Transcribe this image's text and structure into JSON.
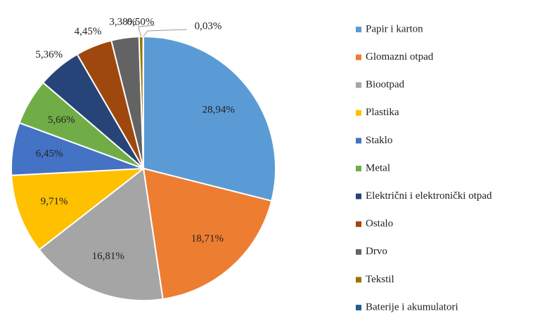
{
  "chart_data": {
    "type": "pie",
    "categories": [
      "Papir i karton",
      "Glomazni otpad",
      "Biootpad",
      "Plastika",
      "Staklo",
      "Metal",
      "Električni i elektronički otpad",
      "Ostalo",
      "Drvo",
      "Tekstil",
      "Baterije i akumulatori"
    ],
    "values": [
      28.94,
      18.71,
      16.81,
      9.71,
      6.45,
      5.66,
      5.36,
      4.45,
      3.38,
      0.5,
      0.03
    ],
    "value_labels": [
      "28,94%",
      "18,71%",
      "16,81%",
      "9,71%",
      "6,45%",
      "5,66%",
      "5,36%",
      "4,45%",
      "3,38%",
      "0,50%",
      "0,03%"
    ],
    "colors": [
      "#5b9bd5",
      "#ed7d31",
      "#a5a5a5",
      "#ffc000",
      "#4472c4",
      "#70ad47",
      "#264478",
      "#9e480e",
      "#636363",
      "#997300",
      "#255e91"
    ],
    "legend": "right"
  }
}
